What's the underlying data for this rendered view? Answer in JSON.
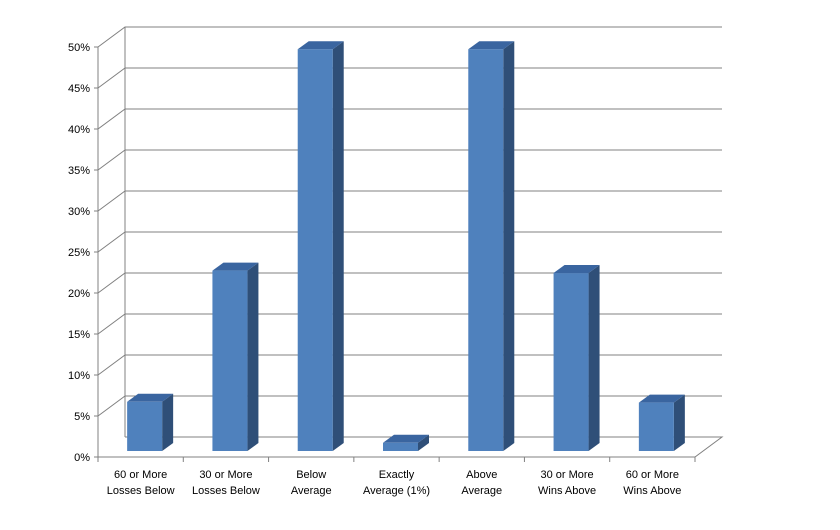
{
  "chart_data": {
    "type": "bar",
    "title": "",
    "xlabel": "",
    "ylabel": "",
    "categories": [
      [
        "60 or More",
        "Losses Below"
      ],
      [
        "30 or More",
        "Losses Below"
      ],
      [
        "Below",
        "Average"
      ],
      [
        "Exactly",
        "Average (1%)"
      ],
      [
        "Above",
        "Average"
      ],
      [
        "30 or More",
        "Wins Above"
      ],
      [
        "60 or More",
        "Wins Above"
      ]
    ],
    "values": [
      6,
      22,
      49,
      1,
      49,
      21.7,
      5.9
    ],
    "ylim": [
      0,
      50
    ],
    "yticks": [
      "0%",
      "5%",
      "10%",
      "15%",
      "20%",
      "25%",
      "30%",
      "35%",
      "40%",
      "45%",
      "50%"
    ],
    "grid": true,
    "legend": "none",
    "colors": {
      "bar_front": "#4F81BD",
      "bar_top": "#3A65A0",
      "bar_side": "#2F4F78",
      "grid": "#808080",
      "axis": "#808080"
    }
  }
}
